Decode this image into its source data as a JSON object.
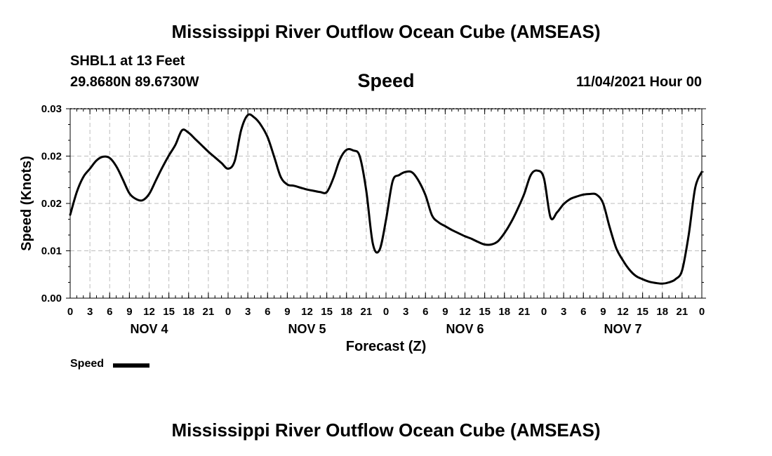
{
  "header": {
    "title": "Mississippi River Outflow Ocean Cube (AMSEAS)",
    "station": "SHBL1 at 13 Feet",
    "coords": "29.8680N  89.6730W",
    "variable": "Speed",
    "datetime": "11/04/2021 Hour 00"
  },
  "footer": {
    "title": "Mississippi River Outflow Ocean Cube (AMSEAS)"
  },
  "legend": {
    "label": "Speed",
    "color": "#000000"
  },
  "chart_data": {
    "type": "line",
    "title": "Speed",
    "xlabel": "Forecast (Z)",
    "ylabel": "Speed (Knots)",
    "xlim": [
      0,
      96
    ],
    "ylim": [
      0,
      0.03
    ],
    "grid": true,
    "x_tick_labels": [
      "0",
      "3",
      "6",
      "9",
      "12",
      "15",
      "18",
      "21",
      "0",
      "3",
      "6",
      "9",
      "12",
      "15",
      "18",
      "21",
      "0",
      "3",
      "6",
      "9",
      "12",
      "15",
      "18",
      "21",
      "0",
      "3",
      "6",
      "9",
      "12",
      "15",
      "18",
      "21",
      "0"
    ],
    "y_ticks": [
      0,
      0.0075,
      0.015,
      0.0225,
      0.03
    ],
    "y_tick_labels": [
      "0.00",
      "0.01",
      "0.02",
      "0.02",
      "0.03"
    ],
    "day_labels": [
      {
        "label": "NOV 4",
        "hour": 12
      },
      {
        "label": "NOV 5",
        "hour": 36
      },
      {
        "label": "NOV 6",
        "hour": 60
      },
      {
        "label": "NOV 7",
        "hour": 84
      }
    ],
    "series": [
      {
        "name": "Speed",
        "color": "#000000",
        "x": [
          0,
          1,
          2,
          3,
          4,
          5,
          6,
          7,
          8,
          9,
          10,
          11,
          12,
          13,
          14,
          15,
          16,
          17,
          18,
          19,
          20,
          21,
          22,
          23,
          24,
          25,
          26,
          27,
          28,
          29,
          30,
          31,
          32,
          33,
          34,
          35,
          36,
          37,
          38,
          39,
          40,
          41,
          42,
          43,
          44,
          45,
          46,
          47,
          48,
          49,
          50,
          51,
          52,
          53,
          54,
          55,
          56,
          57,
          58,
          59,
          60,
          61,
          62,
          63,
          64,
          65,
          66,
          67,
          68,
          69,
          70,
          71,
          72,
          73,
          74,
          75,
          76,
          77,
          78,
          79,
          80,
          81,
          82,
          83,
          84,
          85,
          86,
          87,
          88,
          89,
          90,
          91,
          92,
          93,
          94,
          95,
          96
        ],
        "values": [
          0.0132,
          0.0168,
          0.0192,
          0.0205,
          0.0218,
          0.0224,
          0.0222,
          0.0209,
          0.0188,
          0.0166,
          0.0157,
          0.0155,
          0.0165,
          0.0186,
          0.0207,
          0.0226,
          0.0243,
          0.0266,
          0.0262,
          0.0252,
          0.0242,
          0.0232,
          0.0223,
          0.0214,
          0.0205,
          0.0217,
          0.0267,
          0.029,
          0.0286,
          0.0274,
          0.0255,
          0.0224,
          0.0192,
          0.018,
          0.0178,
          0.0175,
          0.0172,
          0.017,
          0.0168,
          0.0168,
          0.019,
          0.022,
          0.0235,
          0.0234,
          0.0225,
          0.017,
          0.0086,
          0.0076,
          0.0124,
          0.0185,
          0.0195,
          0.02,
          0.0199,
          0.0185,
          0.0163,
          0.0131,
          0.012,
          0.0114,
          0.0108,
          0.0103,
          0.0098,
          0.0094,
          0.0089,
          0.0085,
          0.0085,
          0.009,
          0.0103,
          0.012,
          0.0141,
          0.0165,
          0.0195,
          0.0202,
          0.019,
          0.0128,
          0.0136,
          0.0149,
          0.0157,
          0.0161,
          0.0164,
          0.0165,
          0.0164,
          0.015,
          0.0112,
          0.0079,
          0.006,
          0.0045,
          0.0035,
          0.003,
          0.0026,
          0.0024,
          0.0023,
          0.0025,
          0.003,
          0.0044,
          0.01,
          0.0175,
          0.02
        ]
      }
    ]
  }
}
